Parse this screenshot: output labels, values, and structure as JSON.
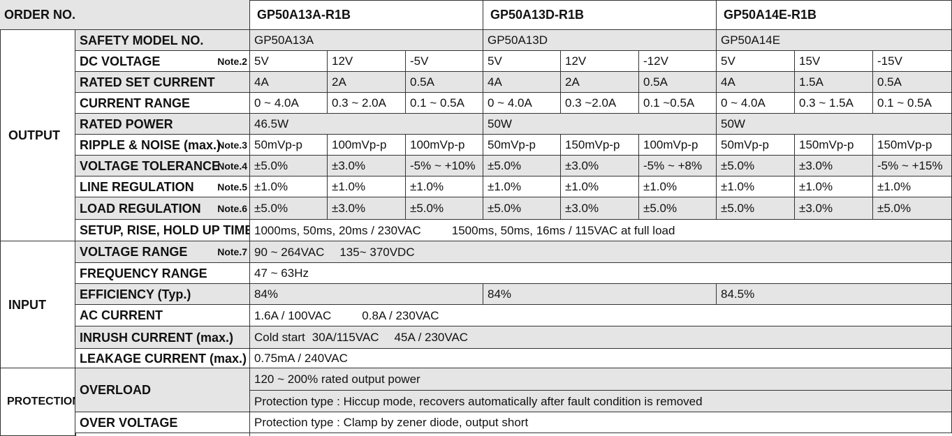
{
  "header": {
    "order_no_label": "ORDER NO.",
    "models": [
      "GP50A13A-R1B",
      "GP50A13D-R1B",
      "GP50A14E-R1B"
    ]
  },
  "sections": {
    "output": "OUTPUT",
    "input": "INPUT",
    "protection": "PROTECTION"
  },
  "output": {
    "safety_model": {
      "label": "SAFETY MODEL NO.",
      "values": [
        "GP50A13A",
        "GP50A13D",
        "GP50A14E"
      ]
    },
    "dc_voltage": {
      "label": "DC VOLTAGE",
      "note": "Note.2",
      "values": [
        "5V",
        "12V",
        "-5V",
        "5V",
        "12V",
        "-12V",
        "5V",
        "15V",
        "-15V"
      ]
    },
    "rated_current": {
      "label": "RATED SET CURRENT",
      "values": [
        "4A",
        "2A",
        "0.5A",
        "4A",
        "2A",
        "0.5A",
        "4A",
        "1.5A",
        "0.5A"
      ]
    },
    "current_range": {
      "label": "CURRENT RANGE",
      "values": [
        "0 ~ 4.0A",
        "0.3 ~ 2.0A",
        "0.1 ~ 0.5A",
        "0 ~ 4.0A",
        "0.3 ~2.0A",
        "0.1 ~0.5A",
        "0 ~ 4.0A",
        "0.3 ~ 1.5A",
        "0.1 ~ 0.5A"
      ]
    },
    "rated_power": {
      "label": "RATED POWER",
      "values": [
        "46.5W",
        "50W",
        "50W"
      ]
    },
    "ripple": {
      "label": "RIPPLE & NOISE (max.)",
      "note": "Note.3",
      "values": [
        "50mVp-p",
        "100mVp-p",
        "100mVp-p",
        "50mVp-p",
        "150mVp-p",
        "100mVp-p",
        "50mVp-p",
        "150mVp-p",
        "150mVp-p"
      ]
    },
    "voltage_tolerance": {
      "label": "VOLTAGE TOLERANCE",
      "note": "Note.4",
      "values": [
        "±5.0%",
        "±3.0%",
        "-5% ~ +10%",
        "±5.0%",
        "±3.0%",
        "-5% ~ +8%",
        "±5.0%",
        "±3.0%",
        "-5% ~ +15%"
      ]
    },
    "line_regulation": {
      "label": "LINE REGULATION",
      "note": "Note.5",
      "values": [
        "±1.0%",
        "±1.0%",
        "±1.0%",
        "±1.0%",
        "±1.0%",
        "±1.0%",
        "±1.0%",
        "±1.0%",
        "±1.0%"
      ]
    },
    "load_regulation": {
      "label": "LOAD REGULATION",
      "note": "Note.6",
      "values": [
        "±5.0%",
        "±3.0%",
        "±5.0%",
        "±5.0%",
        "±3.0%",
        "±5.0%",
        "±5.0%",
        "±3.0%",
        "±5.0%"
      ]
    },
    "setup": {
      "label": "SETUP, RISE, HOLD UP TIME",
      "value1": "1000ms, 50ms, 20ms / 230VAC",
      "value2": "1500ms, 50ms, 16ms / 115VAC at full load"
    }
  },
  "input": {
    "voltage_range": {
      "label": "VOLTAGE RANGE",
      "note": "Note.7",
      "value1": "90 ~ 264VAC",
      "value2": "135~ 370VDC"
    },
    "frequency_range": {
      "label": "FREQUENCY RANGE",
      "value": "47 ~ 63Hz"
    },
    "efficiency": {
      "label": "EFFICIENCY (Typ.)",
      "values": [
        "84%",
        "84%",
        "84.5%"
      ]
    },
    "ac_current": {
      "label": "AC CURRENT",
      "value1": "1.6A / 100VAC",
      "value2": "0.8A / 230VAC"
    },
    "inrush_current": {
      "label": "INRUSH CURRENT (max.)",
      "value1": "Cold start",
      "value2": "30A/115VAC",
      "value3": "45A / 230VAC"
    },
    "leakage_current": {
      "label": "LEAKAGE CURRENT (max.)",
      "value": "0.75mA / 240VAC"
    }
  },
  "protection": {
    "overload": {
      "label": "OVERLOAD",
      "value1": "120 ~ 200%  rated output power",
      "value2": "Protection type : Hiccup mode, recovers automatically after fault condition is removed"
    },
    "over_voltage": {
      "label": "OVER VOLTAGE",
      "value": "Protection type : Clamp by zener diode, output short"
    }
  }
}
